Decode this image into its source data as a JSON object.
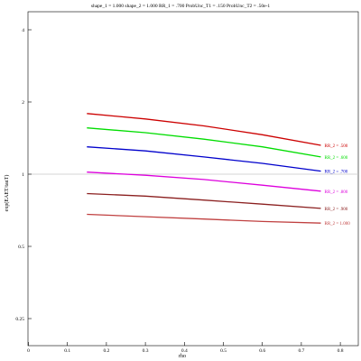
{
  "chart_data": {
    "type": "line",
    "title": "shape_1 = 1.000 shape_2 = 1.000 RR_1 = .700 ProbUnc_T1 = .150 ProbUnc_T2 = .50e-1",
    "xlabel": "rho",
    "ylabel": "exp(EAET/tauT)",
    "y_scale": "log",
    "xlim": [
      0,
      0.9
    ],
    "ylim": [
      0.2,
      4.6
    ],
    "x_ticks": [
      0,
      0.1,
      0.2,
      0.3,
      0.4,
      0.5,
      0.6,
      0.7,
      0.8
    ],
    "x_tick_labels": [
      "0",
      "0.1",
      "0.2",
      "0.3",
      "0.4",
      "0.5",
      "0.6",
      "0.7",
      "0.8"
    ],
    "y_ticks": [
      0.25,
      0.5,
      1,
      2,
      4
    ],
    "y_tick_labels": [
      "0.25",
      "0.5",
      "1",
      "2",
      "4"
    ],
    "reference_line": 1,
    "x": [
      0.15,
      0.3,
      0.45,
      0.6,
      0.75
    ],
    "series": [
      {
        "name": "RR_2 = .500",
        "color": "#cc0000",
        "values": [
          1.79,
          1.7,
          1.59,
          1.46,
          1.32
        ]
      },
      {
        "name": "RR_2 = .600",
        "color": "#00dd00",
        "values": [
          1.56,
          1.49,
          1.4,
          1.3,
          1.18
        ]
      },
      {
        "name": "RR_2 = .700",
        "color": "#0000cc",
        "values": [
          1.3,
          1.25,
          1.18,
          1.11,
          1.03
        ]
      },
      {
        "name": "RR_2 = .800",
        "color": "#dd00dd",
        "values": [
          1.02,
          0.99,
          0.95,
          0.9,
          0.85
        ]
      },
      {
        "name": "RR_2 = .900",
        "color": "#8b2020",
        "values": [
          0.83,
          0.81,
          0.78,
          0.75,
          0.72
        ]
      },
      {
        "name": "RR_2 = 1.000",
        "color": "#c04040",
        "values": [
          0.68,
          0.665,
          0.65,
          0.635,
          0.625
        ]
      }
    ],
    "grid": false,
    "legend": "inline labels at right end of lines"
  }
}
